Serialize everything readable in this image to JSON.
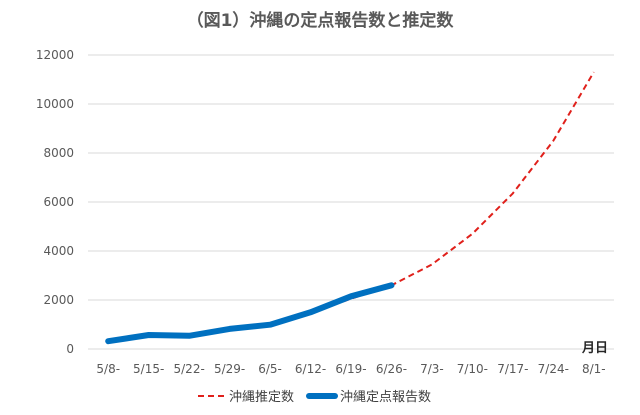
{
  "chart_data": {
    "type": "line",
    "title": "（図1）沖縄の定点報告数と推定数",
    "xlabel": "月日",
    "ylabel": "",
    "categories": [
      "5/8-",
      "5/15-",
      "5/22-",
      "5/29-",
      "6/5-",
      "6/12-",
      "6/19-",
      "6/26-",
      "7/3-",
      "7/10-",
      "7/17-",
      "7/24-",
      "8/1-"
    ],
    "ylim": [
      0,
      12000
    ],
    "yticks": [
      0,
      2000,
      4000,
      6000,
      8000,
      10000,
      12000
    ],
    "grid": true,
    "legend_position": "bottom",
    "series": [
      {
        "name": "沖縄推定数",
        "style": "dashed",
        "color": "#e0201b",
        "values": [
          320,
          560,
          550,
          800,
          960,
          1500,
          2050,
          2600,
          3450,
          4700,
          6350,
          8500,
          11300
        ]
      },
      {
        "name": "沖縄定点報告数",
        "style": "solid-thick",
        "color": "#0070c0",
        "values": [
          320,
          570,
          540,
          820,
          990,
          1500,
          2150,
          2600,
          null,
          null,
          null,
          null,
          null
        ]
      }
    ]
  }
}
